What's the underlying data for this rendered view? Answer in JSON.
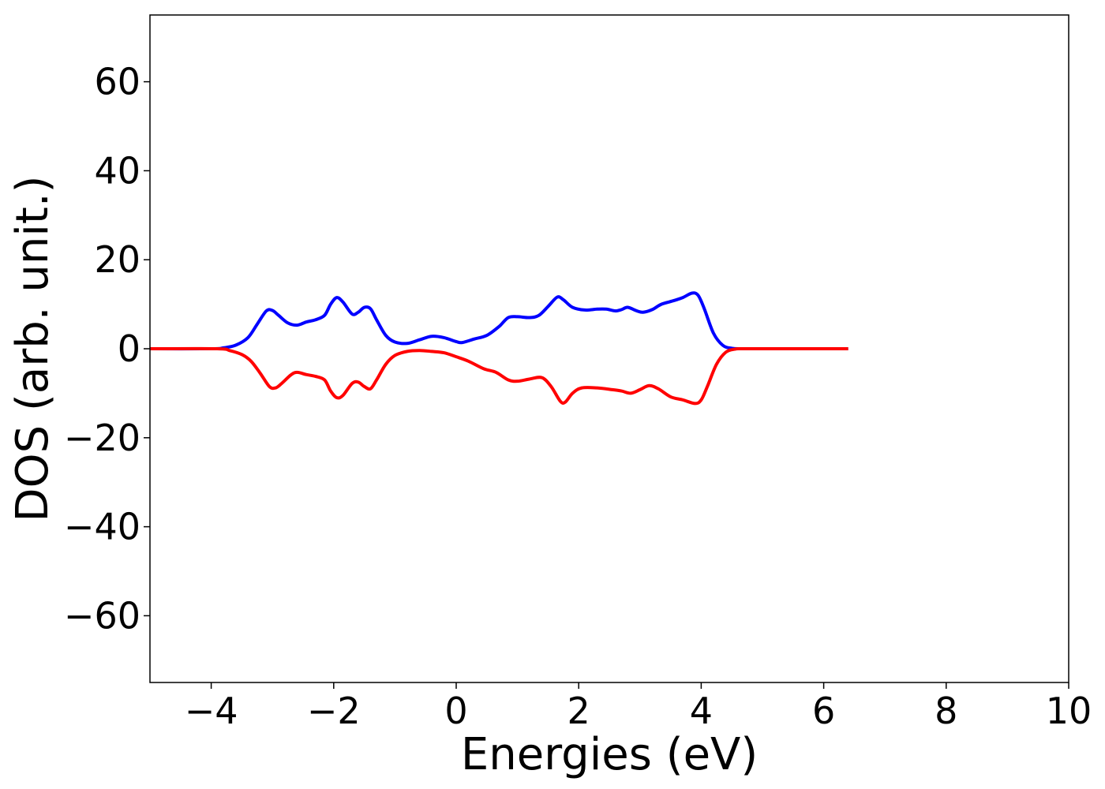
{
  "chart_data": {
    "type": "line",
    "xlabel": "Energies (eV)",
    "ylabel": "DOS (arb. unit.)",
    "xlim": [
      -5,
      10
    ],
    "ylim": [
      -75,
      75
    ],
    "xticks": [
      -4,
      -2,
      0,
      2,
      4,
      6,
      8,
      10
    ],
    "yticks": [
      -60,
      -40,
      -20,
      0,
      20,
      40,
      60
    ],
    "xtick_labels": [
      "−4",
      "−2",
      "0",
      "2",
      "4",
      "6",
      "8",
      "10"
    ],
    "ytick_labels": [
      "−60",
      "−40",
      "−20",
      "0",
      "20",
      "40",
      "60"
    ],
    "grid": false,
    "series": [
      {
        "color": "#0000ff",
        "points": [
          [
            -5.0,
            0
          ],
          [
            -4.0,
            0
          ],
          [
            -3.8,
            0.2
          ],
          [
            -3.6,
            0.8
          ],
          [
            -3.4,
            2.5
          ],
          [
            -3.25,
            5.5
          ],
          [
            -3.1,
            8.5
          ],
          [
            -3.0,
            8.6
          ],
          [
            -2.9,
            7.5
          ],
          [
            -2.75,
            5.8
          ],
          [
            -2.6,
            5.3
          ],
          [
            -2.45,
            6.0
          ],
          [
            -2.3,
            6.5
          ],
          [
            -2.15,
            7.5
          ],
          [
            -2.05,
            10.0
          ],
          [
            -1.95,
            11.5
          ],
          [
            -1.85,
            10.5
          ],
          [
            -1.7,
            7.8
          ],
          [
            -1.6,
            8.2
          ],
          [
            -1.5,
            9.3
          ],
          [
            -1.4,
            9.0
          ],
          [
            -1.3,
            6.5
          ],
          [
            -1.15,
            3.0
          ],
          [
            -1.0,
            1.5
          ],
          [
            -0.8,
            1.2
          ],
          [
            -0.6,
            2.0
          ],
          [
            -0.4,
            2.8
          ],
          [
            -0.2,
            2.5
          ],
          [
            0.0,
            1.6
          ],
          [
            0.1,
            1.4
          ],
          [
            0.3,
            2.2
          ],
          [
            0.5,
            3.0
          ],
          [
            0.7,
            5.0
          ],
          [
            0.85,
            7.0
          ],
          [
            1.0,
            7.2
          ],
          [
            1.2,
            7.0
          ],
          [
            1.35,
            7.5
          ],
          [
            1.5,
            9.5
          ],
          [
            1.65,
            11.6
          ],
          [
            1.75,
            11.0
          ],
          [
            1.9,
            9.3
          ],
          [
            2.1,
            8.7
          ],
          [
            2.3,
            8.9
          ],
          [
            2.45,
            8.9
          ],
          [
            2.6,
            8.5
          ],
          [
            2.7,
            8.8
          ],
          [
            2.8,
            9.3
          ],
          [
            2.95,
            8.5
          ],
          [
            3.05,
            8.2
          ],
          [
            3.2,
            8.8
          ],
          [
            3.35,
            10.0
          ],
          [
            3.55,
            10.8
          ],
          [
            3.7,
            11.5
          ],
          [
            3.85,
            12.5
          ],
          [
            3.95,
            12.0
          ],
          [
            4.05,
            9.0
          ],
          [
            4.2,
            3.5
          ],
          [
            4.35,
            0.8
          ],
          [
            4.5,
            0.1
          ],
          [
            4.7,
            0
          ],
          [
            5.5,
            0
          ],
          [
            6.4,
            0
          ]
        ]
      },
      {
        "color": "#ff0000",
        "points": [
          [
            -5.0,
            0
          ],
          [
            -3.9,
            0
          ],
          [
            -3.7,
            -0.4
          ],
          [
            -3.5,
            -1.3
          ],
          [
            -3.35,
            -2.8
          ],
          [
            -3.2,
            -5.5
          ],
          [
            -3.05,
            -8.5
          ],
          [
            -2.95,
            -8.8
          ],
          [
            -2.85,
            -7.8
          ],
          [
            -2.7,
            -5.9
          ],
          [
            -2.6,
            -5.3
          ],
          [
            -2.45,
            -5.8
          ],
          [
            -2.3,
            -6.2
          ],
          [
            -2.15,
            -7.0
          ],
          [
            -2.05,
            -9.5
          ],
          [
            -1.95,
            -11.0
          ],
          [
            -1.85,
            -10.5
          ],
          [
            -1.7,
            -7.8
          ],
          [
            -1.6,
            -7.5
          ],
          [
            -1.5,
            -8.5
          ],
          [
            -1.4,
            -9.0
          ],
          [
            -1.3,
            -7.0
          ],
          [
            -1.15,
            -3.5
          ],
          [
            -1.0,
            -1.5
          ],
          [
            -0.8,
            -0.6
          ],
          [
            -0.6,
            -0.4
          ],
          [
            -0.4,
            -0.6
          ],
          [
            -0.2,
            -0.9
          ],
          [
            0.0,
            -1.8
          ],
          [
            0.2,
            -2.8
          ],
          [
            0.45,
            -4.5
          ],
          [
            0.65,
            -5.3
          ],
          [
            0.85,
            -7.0
          ],
          [
            1.0,
            -7.3
          ],
          [
            1.2,
            -6.8
          ],
          [
            1.4,
            -6.5
          ],
          [
            1.55,
            -8.5
          ],
          [
            1.7,
            -11.8
          ],
          [
            1.78,
            -12.0
          ],
          [
            1.9,
            -10.0
          ],
          [
            2.05,
            -8.8
          ],
          [
            2.3,
            -8.8
          ],
          [
            2.55,
            -9.2
          ],
          [
            2.7,
            -9.5
          ],
          [
            2.85,
            -10.0
          ],
          [
            3.0,
            -9.2
          ],
          [
            3.15,
            -8.3
          ],
          [
            3.3,
            -9.0
          ],
          [
            3.5,
            -10.8
          ],
          [
            3.7,
            -11.5
          ],
          [
            3.9,
            -12.3
          ],
          [
            4.0,
            -11.5
          ],
          [
            4.1,
            -8.5
          ],
          [
            4.25,
            -3.5
          ],
          [
            4.4,
            -0.8
          ],
          [
            4.55,
            -0.1
          ],
          [
            4.7,
            0
          ],
          [
            5.5,
            0
          ],
          [
            6.4,
            0
          ]
        ]
      }
    ]
  }
}
